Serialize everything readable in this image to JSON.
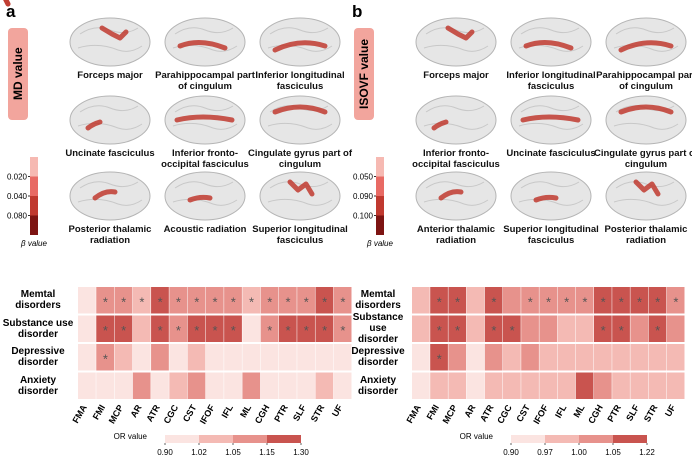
{
  "panels": [
    {
      "letter": "a",
      "measure_label": "MD value",
      "tracts": [
        "Forceps major",
        "Parahippocampal part of cingulum",
        "Inferior longitudinal fasciculus",
        "Uncinate fasciculus",
        "Inferior fronto-occipital fasciculus",
        "Cingulate gyrus part of cingulum",
        "Posterior thalamic radiation",
        "Acoustic radiation",
        "Superior longitudinal fasciculus"
      ],
      "colorbar": {
        "ticks": [
          {
            "value": 0.02,
            "label": "0.020"
          },
          {
            "value": 0.04,
            "label": "0.040"
          },
          {
            "value": 0.08,
            "label": "0.080"
          }
        ],
        "title": "β value",
        "colors": [
          "#f6b9b2",
          "#e86a64",
          "#c0392f",
          "#7d1412"
        ]
      },
      "heatmap": {
        "rows": [
          "Memtal disorders",
          "Substance use disorder",
          "Depressive disorder",
          "Anxiety disorder"
        ],
        "columns": [
          "FMA",
          "FMI",
          "MCP",
          "AR",
          "ATR",
          "CGC",
          "CST",
          "IFOF",
          "IFL",
          "ML",
          "CGH",
          "PTR",
          "SLF",
          "STR",
          "UF"
        ],
        "values": [
          [
            0.98,
            1.08,
            1.05,
            1.02,
            1.2,
            1.1,
            1.1,
            1.1,
            1.1,
            1.03,
            1.1,
            1.12,
            1.12,
            1.2,
            1.1
          ],
          [
            1.0,
            1.15,
            1.15,
            1.02,
            1.15,
            1.12,
            1.15,
            1.18,
            1.2,
            0.95,
            1.08,
            1.15,
            1.15,
            1.15,
            1.08
          ],
          [
            0.95,
            1.08,
            1.04,
            0.95,
            1.05,
            1.0,
            1.03,
            1.0,
            0.98,
            1.0,
            1.0,
            1.0,
            1.0,
            1.0,
            1.0
          ],
          [
            0.98,
            1.0,
            1.0,
            1.06,
            1.0,
            1.02,
            1.05,
            1.0,
            1.0,
            1.05,
            1.0,
            1.0,
            0.98,
            1.02,
            1.0
          ]
        ],
        "stars": [
          [
            null,
            "*",
            "*",
            "*",
            "*",
            "*",
            "*",
            "*",
            "*",
            "*",
            "*",
            "*",
            "*",
            "*",
            "*"
          ],
          [
            null,
            "*",
            "*",
            null,
            "*",
            "*",
            "*",
            "*",
            "*",
            null,
            "*",
            "*",
            "*",
            "*",
            "*"
          ],
          [
            null,
            "*",
            null,
            null,
            null,
            null,
            null,
            null,
            null,
            null,
            null,
            null,
            null,
            null,
            null
          ],
          [
            null,
            null,
            null,
            null,
            null,
            null,
            null,
            null,
            null,
            null,
            null,
            null,
            null,
            null,
            null
          ]
        ],
        "legend_title": "OR value",
        "legend_ticks": [
          {
            "value": 0.9,
            "label": "0.90"
          },
          1.02,
          1.05,
          1.15,
          {
            "value": 1.3,
            "label": "1.30"
          }
        ],
        "legend_colors": [
          "#fbe4e1",
          "#f4bab4",
          "#e7928c",
          "#c9544f"
        ]
      }
    },
    {
      "letter": "b",
      "measure_label": "ISOVF value",
      "tracts": [
        "Forceps major",
        "Inferior longitudinal fasciculus",
        "Parahippocampal part of cingulum",
        "Inferior fronto-occipital fasciculus",
        "Uncinate fasciculus",
        "Cingulate gyrus part of cingulum",
        "Anterior thalamic radiation",
        "Superior longitudinal fasciculus",
        "Posterior thalamic radiation"
      ],
      "colorbar": {
        "ticks": [
          {
            "value": 0.05,
            "label": "0.050"
          },
          {
            "value": 0.09,
            "label": "0.090"
          },
          {
            "value": 0.1,
            "label": "0.100"
          }
        ],
        "title": "β value",
        "colors": [
          "#f6b9b2",
          "#e86a64",
          "#c0392f",
          "#7d1412"
        ]
      },
      "heatmap": {
        "rows": [
          "Memtal disorders",
          "Substance use disorder",
          "Depressive disorder",
          "Anxiety disorder"
        ],
        "columns": [
          "FMA",
          "FMI",
          "MCP",
          "AR",
          "ATR",
          "CGC",
          "CST",
          "IFOF",
          "IFL",
          "ML",
          "CGH",
          "PTR",
          "SLF",
          "STR",
          "UF"
        ],
        "values": [
          [
            0.97,
            1.1,
            1.1,
            0.97,
            1.08,
            1.0,
            1.02,
            1.02,
            1.02,
            1.0,
            1.06,
            1.1,
            1.1,
            1.1,
            1.02
          ],
          [
            0.97,
            1.1,
            1.08,
            0.97,
            1.1,
            1.06,
            1.0,
            1.0,
            0.98,
            0.98,
            1.08,
            1.1,
            1.04,
            1.1,
            1.0
          ],
          [
            0.95,
            1.15,
            1.0,
            0.95,
            1.0,
            0.97,
            1.0,
            0.97,
            0.97,
            0.97,
            0.97,
            0.97,
            0.97,
            0.97,
            0.97
          ],
          [
            0.95,
            0.98,
            0.97,
            0.95,
            0.97,
            0.97,
            0.98,
            0.97,
            0.97,
            1.2,
            1.0,
            0.97,
            0.97,
            0.98,
            0.97
          ]
        ],
        "stars": [
          [
            null,
            "*",
            "*",
            null,
            "*",
            null,
            "*",
            "*",
            "*",
            "*",
            "*",
            "*",
            "*",
            "*",
            "*"
          ],
          [
            null,
            "*",
            "*",
            null,
            "*",
            "*",
            null,
            null,
            null,
            null,
            "*",
            "*",
            null,
            "*",
            null
          ],
          [
            null,
            "*",
            null,
            null,
            null,
            null,
            null,
            null,
            null,
            null,
            null,
            null,
            null,
            null,
            null
          ],
          [
            null,
            null,
            null,
            null,
            null,
            null,
            null,
            null,
            null,
            null,
            null,
            null,
            null,
            null,
            null
          ]
        ],
        "legend_title": "OR value",
        "legend_ticks": [
          {
            "value": 0.9,
            "label": "0.90"
          },
          {
            "value": 0.97,
            "label": "0.97"
          },
          {
            "value": 1.0,
            "label": "1.00"
          },
          1.05,
          1.22
        ],
        "legend_colors": [
          "#fbe4e1",
          "#f4bab4",
          "#e7928c",
          "#c9544f"
        ]
      }
    }
  ]
}
